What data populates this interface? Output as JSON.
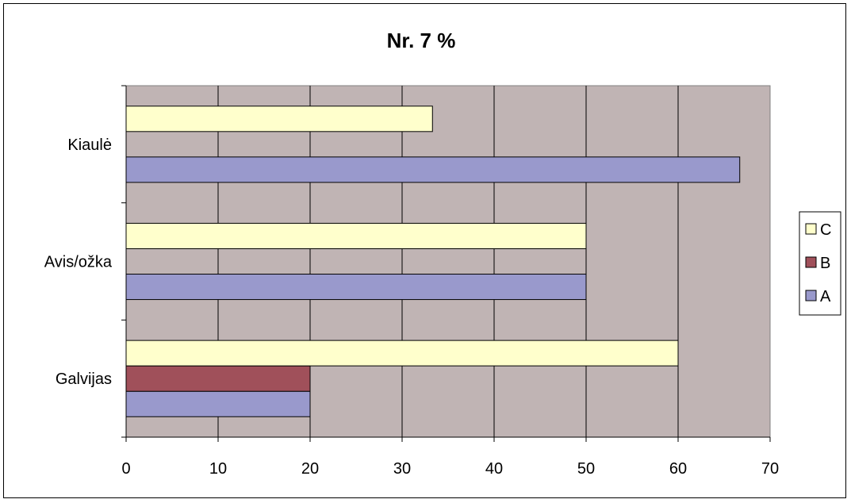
{
  "chart_data": {
    "type": "bar",
    "orientation": "horizontal",
    "title": "Nr. 7 %",
    "categories": [
      "Galvijas",
      "Avis/ožka",
      "Kiaulė"
    ],
    "series": [
      {
        "name": "A",
        "values": [
          20,
          50,
          66.7
        ],
        "color": "#9999cc"
      },
      {
        "name": "B",
        "values": [
          20,
          0,
          0
        ],
        "color": "#a0505a"
      },
      {
        "name": "C",
        "values": [
          60,
          50,
          33.3
        ],
        "color": "#ffffcc"
      }
    ],
    "xlim": [
      0,
      70
    ],
    "x_ticks": [
      "0",
      "10",
      "20",
      "30",
      "40",
      "50",
      "60",
      "70"
    ],
    "grid": true,
    "plot_background": "#c0b4b4",
    "legend": {
      "placement": "right",
      "order": [
        "C",
        "B",
        "A"
      ]
    }
  }
}
